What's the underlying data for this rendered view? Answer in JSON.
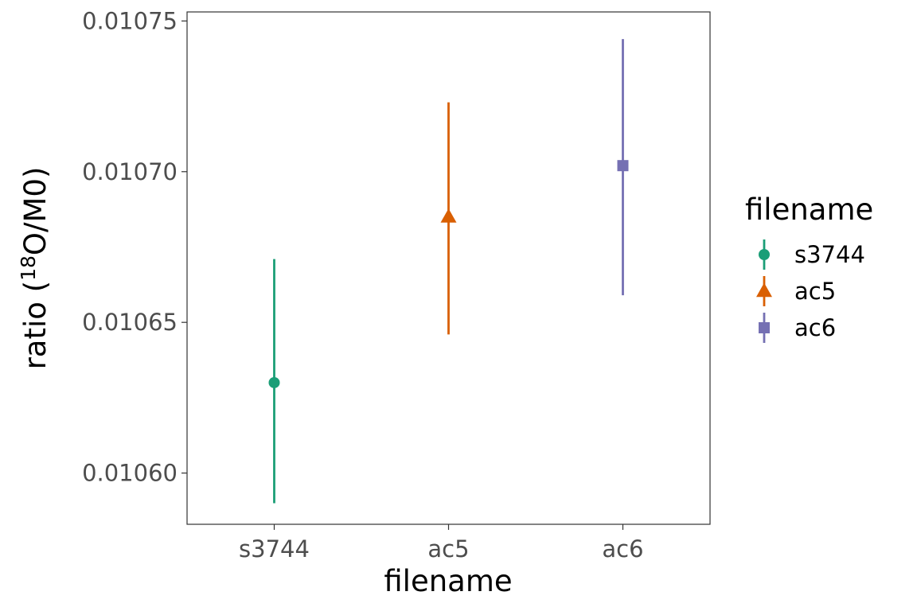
{
  "chart_data": {
    "type": "scatter",
    "title": "",
    "xlabel": "filename",
    "ylabel_prefix": "ratio (",
    "ylabel_superscript": "18",
    "ylabel_suffix": "O/M0)",
    "categories": [
      "s3744",
      "ac5",
      "ac6"
    ],
    "y_ticks": [
      0.0106,
      0.01065,
      0.0107,
      0.01075
    ],
    "y_tick_labels": [
      "0.01060",
      "0.01065",
      "0.01070",
      "0.01075"
    ],
    "ylim": [
      0.010583,
      0.010753
    ],
    "grid": false,
    "points": [
      {
        "category": "s3744",
        "y": 0.01063,
        "ymin": 0.01059,
        "ymax": 0.010671
      },
      {
        "category": "ac5",
        "y": 0.010685,
        "ymin": 0.010646,
        "ymax": 0.010723
      },
      {
        "category": "ac6",
        "y": 0.010702,
        "ymin": 0.010659,
        "ymax": 0.010744
      }
    ],
    "legend": {
      "title": "filename",
      "position": "right",
      "entries": [
        {
          "label": "s3744",
          "color": "#1b9e77",
          "shape": "circle"
        },
        {
          "label": "ac5",
          "color": "#d95f02",
          "shape": "triangle"
        },
        {
          "label": "ac6",
          "color": "#7570b3",
          "shape": "square"
        }
      ]
    }
  }
}
